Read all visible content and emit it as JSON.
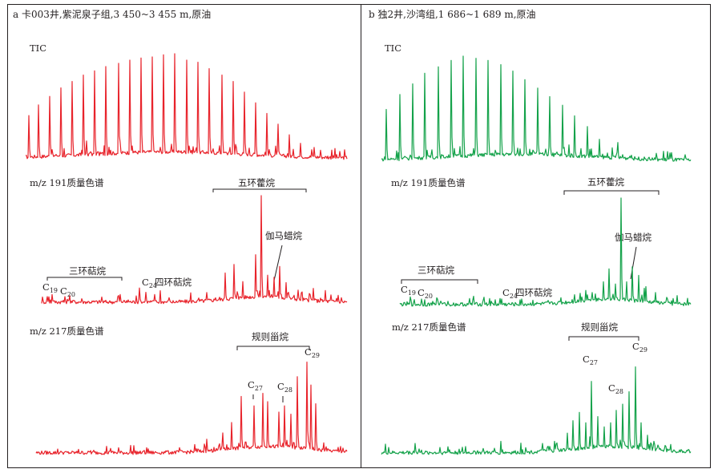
{
  "colors": {
    "panel_a": "#e8232b",
    "panel_b": "#14a24a",
    "text": "#231f20",
    "frame": "#231f20"
  },
  "panels": [
    {
      "title": "a 卡003井,紫泥泉子组,3 450~3 455 m,原油",
      "tic_label": "TIC",
      "m191_label": "m/z 191质量色谱",
      "m217_label": "m/z 217质量色谱",
      "hopane_label": "五环藿烷",
      "gammacerane_label": "伽马蜡烷",
      "tricyclic_label": "三环萜烷",
      "tetracyclic_label": "四环萜烷",
      "sterane_label": "规则甾烷",
      "c19": {
        "base": "C",
        "sub": "19"
      },
      "c20": {
        "base": "C",
        "sub": "20"
      },
      "c24": {
        "base": "C",
        "sub": "24"
      },
      "c27": {
        "base": "C",
        "sub": "27"
      },
      "c28": {
        "base": "C",
        "sub": "28"
      },
      "c29": {
        "base": "C",
        "sub": "29"
      }
    },
    {
      "title": "b 独2井,沙湾组,1 686~1 689 m,原油",
      "tic_label": "TIC",
      "m191_label": "m/z 191质量色谱",
      "m217_label": "m/z 217质量色谱",
      "hopane_label": "五环藿烷",
      "gammacerane_label": "伽马蜡烷",
      "tricyclic_label": "三环萜烷",
      "tetracyclic_label": "四环萜烷",
      "sterane_label": "规则甾烷",
      "c19": {
        "base": "C",
        "sub": "19"
      },
      "c20": {
        "base": "C",
        "sub": "20"
      },
      "c24": {
        "base": "C",
        "sub": "24"
      },
      "c27": {
        "base": "C",
        "sub": "27"
      },
      "c28": {
        "base": "C",
        "sub": "28"
      },
      "c29": {
        "base": "C",
        "sub": "29"
      }
    }
  ],
  "chart_data": [
    {
      "type": "line",
      "panel": "a",
      "trace": "TIC",
      "x_range": [
        0,
        1
      ],
      "y_range": [
        0,
        1
      ],
      "peaks": [
        {
          "x": 0.01,
          "y": 0.42
        },
        {
          "x": 0.04,
          "y": 0.52
        },
        {
          "x": 0.075,
          "y": 0.6
        },
        {
          "x": 0.11,
          "y": 0.68
        },
        {
          "x": 0.145,
          "y": 0.74
        },
        {
          "x": 0.18,
          "y": 0.8
        },
        {
          "x": 0.215,
          "y": 0.84
        },
        {
          "x": 0.25,
          "y": 0.88
        },
        {
          "x": 0.29,
          "y": 0.91
        },
        {
          "x": 0.325,
          "y": 0.94
        },
        {
          "x": 0.36,
          "y": 0.96
        },
        {
          "x": 0.395,
          "y": 0.97
        },
        {
          "x": 0.43,
          "y": 0.99
        },
        {
          "x": 0.465,
          "y": 1.0
        },
        {
          "x": 0.5,
          "y": 0.94
        },
        {
          "x": 0.535,
          "y": 0.92
        },
        {
          "x": 0.57,
          "y": 0.86
        },
        {
          "x": 0.61,
          "y": 0.8
        },
        {
          "x": 0.645,
          "y": 0.74
        },
        {
          "x": 0.68,
          "y": 0.64
        },
        {
          "x": 0.715,
          "y": 0.54
        },
        {
          "x": 0.75,
          "y": 0.44
        },
        {
          "x": 0.785,
          "y": 0.34
        },
        {
          "x": 0.82,
          "y": 0.24
        },
        {
          "x": 0.855,
          "y": 0.16
        },
        {
          "x": 0.89,
          "y": 0.1
        }
      ]
    },
    {
      "type": "line",
      "panel": "a",
      "trace": "m/z 191",
      "x_range": [
        0,
        1
      ],
      "y_range": [
        0,
        1
      ],
      "peaks": [
        {
          "x": 0.035,
          "y": 0.08
        },
        {
          "x": 0.075,
          "y": 0.06
        },
        {
          "x": 0.13,
          "y": 0.04
        },
        {
          "x": 0.25,
          "y": 0.06
        },
        {
          "x": 0.32,
          "y": 0.14
        },
        {
          "x": 0.34,
          "y": 0.1
        },
        {
          "x": 0.37,
          "y": 0.08
        },
        {
          "x": 0.6,
          "y": 0.28
        },
        {
          "x": 0.63,
          "y": 0.36
        },
        {
          "x": 0.66,
          "y": 0.2
        },
        {
          "x": 0.7,
          "y": 0.45
        },
        {
          "x": 0.72,
          "y": 1.0
        },
        {
          "x": 0.74,
          "y": 0.26
        },
        {
          "x": 0.76,
          "y": 0.24
        },
        {
          "x": 0.78,
          "y": 0.34
        },
        {
          "x": 0.8,
          "y": 0.19
        },
        {
          "x": 0.84,
          "y": 0.12
        },
        {
          "x": 0.88,
          "y": 0.08
        }
      ]
    },
    {
      "type": "line",
      "panel": "a",
      "trace": "m/z 217",
      "x_range": [
        0,
        1
      ],
      "y_range": [
        0,
        1
      ],
      "peaks": [
        {
          "x": 0.55,
          "y": 0.14
        },
        {
          "x": 0.6,
          "y": 0.2
        },
        {
          "x": 0.63,
          "y": 0.3
        },
        {
          "x": 0.66,
          "y": 0.55
        },
        {
          "x": 0.7,
          "y": 0.46
        },
        {
          "x": 0.73,
          "y": 0.58
        },
        {
          "x": 0.745,
          "y": 0.5
        },
        {
          "x": 0.78,
          "y": 0.4
        },
        {
          "x": 0.8,
          "y": 0.46
        },
        {
          "x": 0.82,
          "y": 0.38
        },
        {
          "x": 0.84,
          "y": 0.74
        },
        {
          "x": 0.87,
          "y": 0.88
        },
        {
          "x": 0.885,
          "y": 0.66
        },
        {
          "x": 0.9,
          "y": 0.48
        }
      ]
    },
    {
      "type": "line",
      "panel": "b",
      "trace": "TIC",
      "x_range": [
        0,
        1
      ],
      "y_range": [
        0,
        1
      ],
      "peaks": [
        {
          "x": 0.015,
          "y": 0.5
        },
        {
          "x": 0.06,
          "y": 0.64
        },
        {
          "x": 0.1,
          "y": 0.74
        },
        {
          "x": 0.14,
          "y": 0.84
        },
        {
          "x": 0.185,
          "y": 0.9
        },
        {
          "x": 0.225,
          "y": 0.96
        },
        {
          "x": 0.265,
          "y": 1.0
        },
        {
          "x": 0.305,
          "y": 0.98
        },
        {
          "x": 0.345,
          "y": 0.96
        },
        {
          "x": 0.385,
          "y": 0.92
        },
        {
          "x": 0.425,
          "y": 0.86
        },
        {
          "x": 0.465,
          "y": 0.78
        },
        {
          "x": 0.505,
          "y": 0.7
        },
        {
          "x": 0.545,
          "y": 0.62
        },
        {
          "x": 0.585,
          "y": 0.54
        },
        {
          "x": 0.625,
          "y": 0.44
        },
        {
          "x": 0.665,
          "y": 0.34
        },
        {
          "x": 0.705,
          "y": 0.22
        },
        {
          "x": 0.745,
          "y": 0.14
        }
      ]
    },
    {
      "type": "line",
      "panel": "b",
      "trace": "m/z 191",
      "x_range": [
        0,
        1
      ],
      "y_range": [
        0,
        1
      ],
      "peaks": [
        {
          "x": 0.035,
          "y": 0.08
        },
        {
          "x": 0.075,
          "y": 0.06
        },
        {
          "x": 0.14,
          "y": 0.04
        },
        {
          "x": 0.29,
          "y": 0.04
        },
        {
          "x": 0.42,
          "y": 0.06
        },
        {
          "x": 0.6,
          "y": 0.1
        },
        {
          "x": 0.64,
          "y": 0.14
        },
        {
          "x": 0.66,
          "y": 0.12
        },
        {
          "x": 0.7,
          "y": 0.22
        },
        {
          "x": 0.72,
          "y": 0.34
        },
        {
          "x": 0.74,
          "y": 0.2
        },
        {
          "x": 0.76,
          "y": 1.0
        },
        {
          "x": 0.78,
          "y": 0.22
        },
        {
          "x": 0.8,
          "y": 0.36
        },
        {
          "x": 0.82,
          "y": 0.28
        },
        {
          "x": 0.84,
          "y": 0.16
        },
        {
          "x": 0.88,
          "y": 0.12
        },
        {
          "x": 0.92,
          "y": 0.06
        }
      ]
    },
    {
      "type": "line",
      "panel": "b",
      "trace": "m/z 217",
      "x_range": [
        0,
        1
      ],
      "y_range": [
        0,
        1
      ],
      "peaks": [
        {
          "x": 0.11,
          "y": 0.1
        },
        {
          "x": 0.52,
          "y": 0.1
        },
        {
          "x": 0.56,
          "y": 0.12
        },
        {
          "x": 0.6,
          "y": 0.2
        },
        {
          "x": 0.62,
          "y": 0.32
        },
        {
          "x": 0.64,
          "y": 0.4
        },
        {
          "x": 0.66,
          "y": 0.3
        },
        {
          "x": 0.68,
          "y": 0.7
        },
        {
          "x": 0.7,
          "y": 0.36
        },
        {
          "x": 0.72,
          "y": 0.26
        },
        {
          "x": 0.74,
          "y": 0.3
        },
        {
          "x": 0.76,
          "y": 0.42
        },
        {
          "x": 0.78,
          "y": 0.48
        },
        {
          "x": 0.8,
          "y": 0.6
        },
        {
          "x": 0.82,
          "y": 0.84
        },
        {
          "x": 0.84,
          "y": 0.3
        },
        {
          "x": 0.86,
          "y": 0.18
        },
        {
          "x": 0.88,
          "y": 0.12
        }
      ]
    }
  ]
}
